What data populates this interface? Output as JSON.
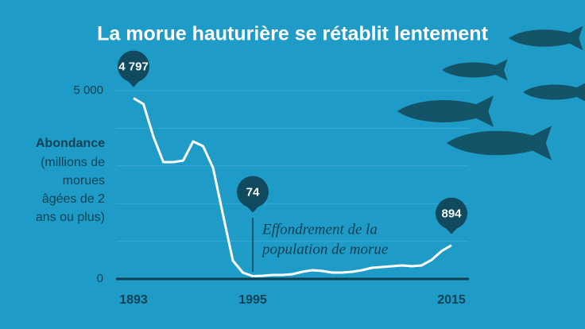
{
  "chart_data": {
    "type": "line",
    "title": "La morue hauturière se rétablit lentement",
    "ylabel": "Abondance",
    "ylabel_detail": [
      "(millions de",
      "morues",
      "âgées de 2",
      "ans ou plus)"
    ],
    "annotation": [
      "Effondrement de la",
      "population de morue"
    ],
    "categories": [
      "1893",
      null,
      null,
      null,
      null,
      null,
      null,
      null,
      null,
      null,
      null,
      null,
      "1995",
      null,
      null,
      null,
      null,
      null,
      null,
      null,
      null,
      null,
      null,
      null,
      null,
      null,
      null,
      null,
      null,
      null,
      null,
      null,
      "2015"
    ],
    "values": [
      4797,
      4642,
      3777,
      3101,
      3101,
      3144,
      3650,
      3524,
      2954,
      1709,
      485,
      169,
      74,
      85,
      105,
      105,
      127,
      190,
      232,
      211,
      169,
      169,
      190,
      232,
      295,
      316,
      338,
      359,
      338,
      359,
      506,
      739,
      894
    ],
    "value_labels": [
      "4 797",
      null,
      null,
      null,
      null,
      null,
      null,
      null,
      null,
      null,
      null,
      null,
      "74",
      null,
      null,
      null,
      null,
      null,
      null,
      null,
      null,
      null,
      null,
      null,
      null,
      null,
      null,
      null,
      null,
      null,
      null,
      null,
      "894"
    ],
    "color": "#ffffff",
    "ylim": [
      0,
      5000
    ],
    "yticks": [
      0,
      {
        "value": 5000,
        "label": "5 000"
      }
    ],
    "minor_grid": [
      1000,
      2000,
      3000,
      4000
    ]
  }
}
